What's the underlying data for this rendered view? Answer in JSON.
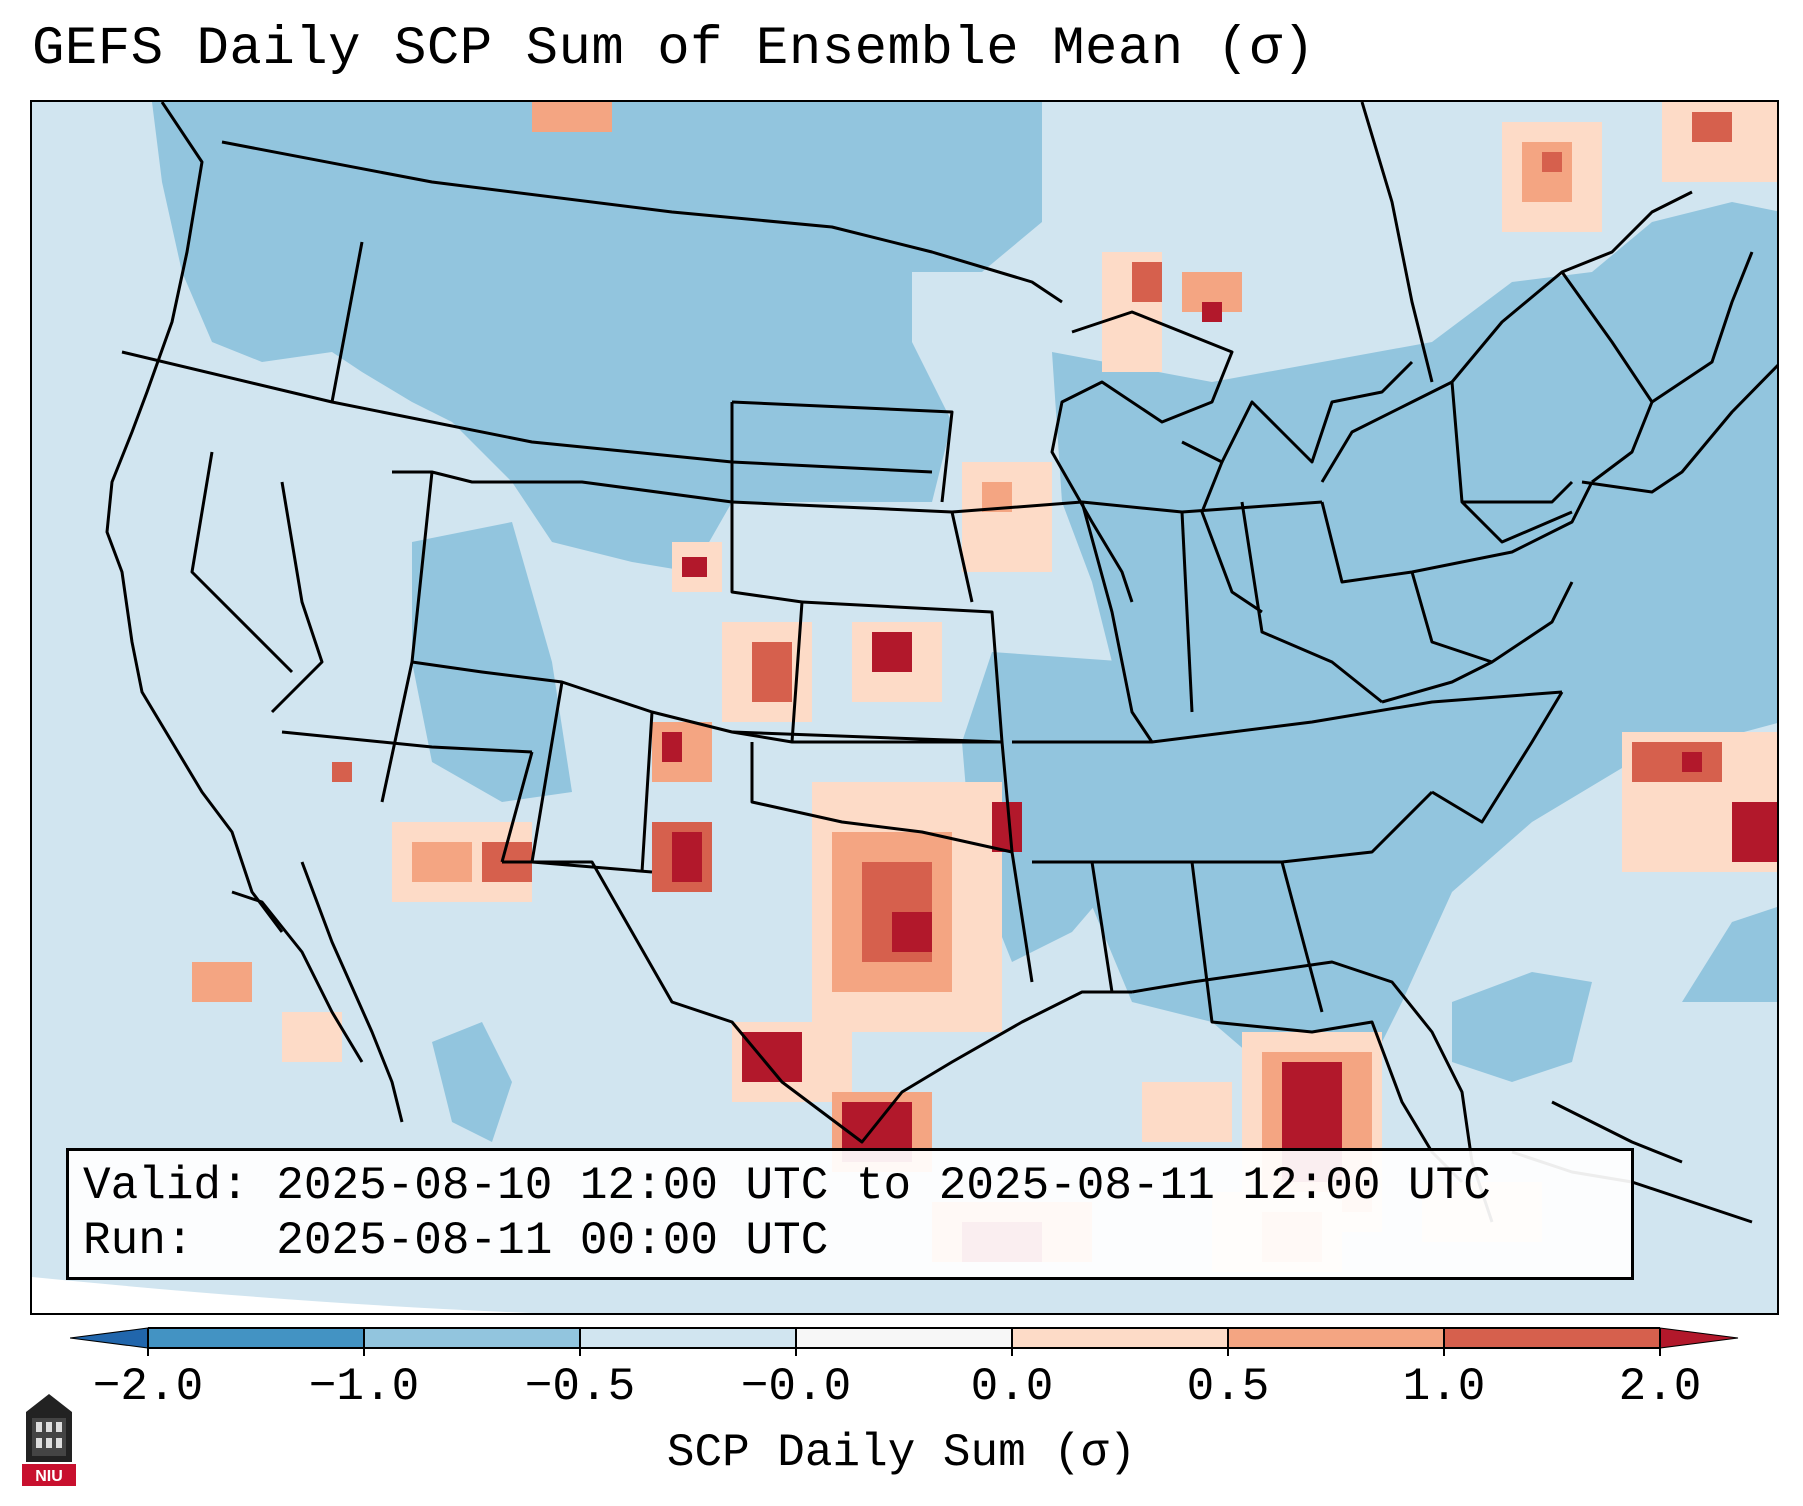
{
  "title": "GEFS Daily SCP Sum of Ensemble Mean (σ)",
  "info": {
    "valid_label": "Valid:",
    "valid_value": "2025-08-10 12:00 UTC to 2025-08-11 12:00 UTC",
    "run_label": "Run:",
    "run_value": "2025-08-11 00:00 UTC"
  },
  "colorbar": {
    "label": "SCP Daily Sum (σ)",
    "ticks": [
      "−2.0",
      "−1.0",
      "−0.5",
      "−0.0",
      "0.0",
      "0.5",
      "1.0",
      "2.0"
    ],
    "bins": [
      {
        "range": "< -2.0",
        "color": "#2166ac"
      },
      {
        "range": "-2.0 to -1.0",
        "color": "#4393c3"
      },
      {
        "range": "-1.0 to -0.5",
        "color": "#92c5de"
      },
      {
        "range": "-0.5 to -0.0",
        "color": "#d1e5f0"
      },
      {
        "range": "-0.0 to 0.0",
        "color": "#f7f7f7"
      },
      {
        "range": "0.0 to 0.5",
        "color": "#fddbc7"
      },
      {
        "range": "0.5 to 1.0",
        "color": "#f4a582"
      },
      {
        "range": "1.0 to 2.0",
        "color": "#d6604d"
      },
      {
        "range": "> 2.0",
        "color": "#b2182b"
      }
    ]
  },
  "logo": {
    "text": "NIU",
    "icon": "university-tower-icon",
    "color": "#c8102e"
  }
}
